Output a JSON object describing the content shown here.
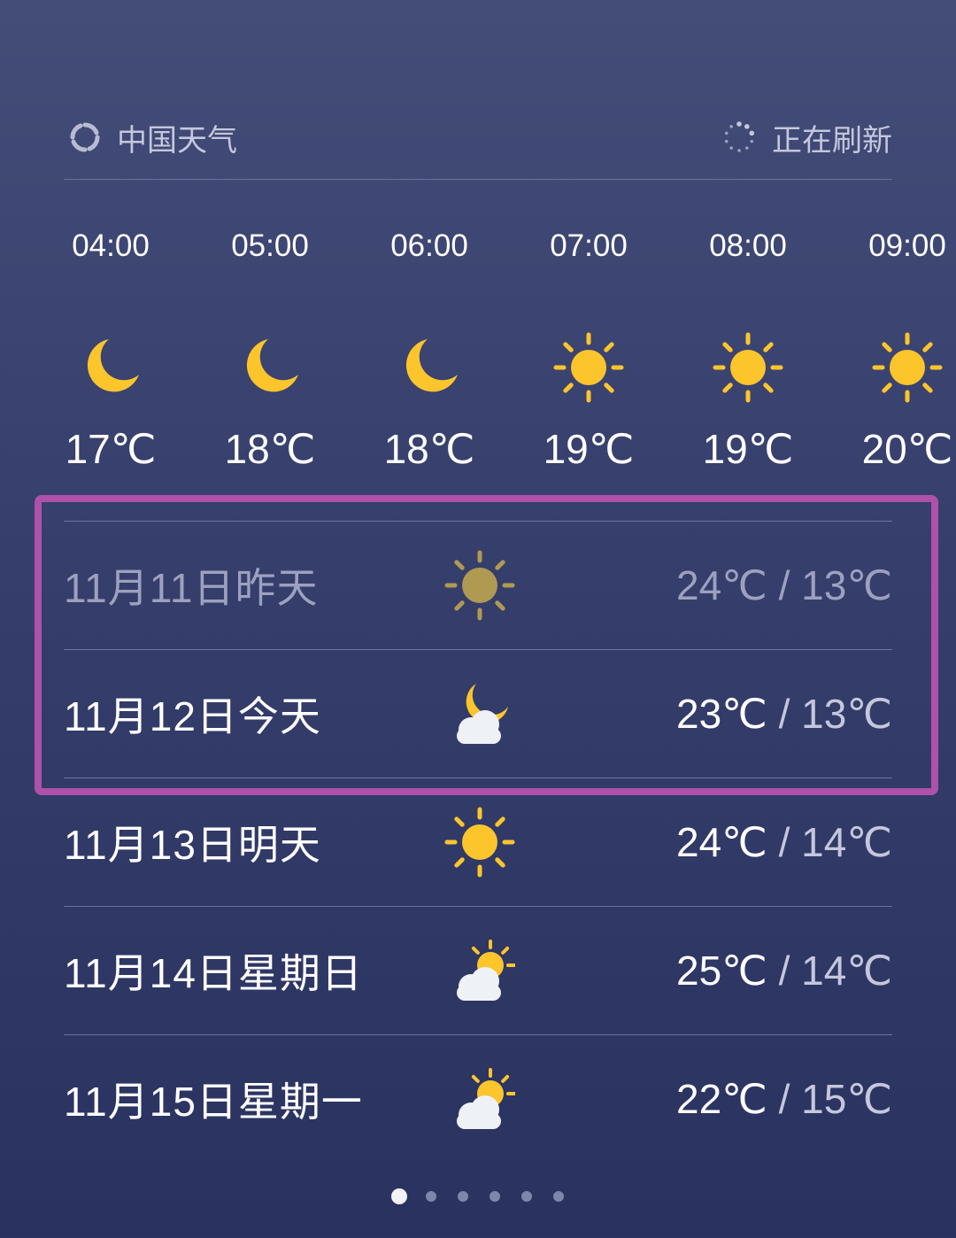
{
  "header": {
    "brand": "中国天气",
    "brand_icon": "china-weather-logo",
    "status": "正在刷新",
    "status_icon": "loading-spinner-icon"
  },
  "hourly": [
    {
      "time": "04:00",
      "icon": "moon",
      "temp": "17℃"
    },
    {
      "time": "05:00",
      "icon": "moon",
      "temp": "18℃"
    },
    {
      "time": "06:00",
      "icon": "moon",
      "temp": "18℃"
    },
    {
      "time": "07:00",
      "icon": "sun",
      "temp": "19℃"
    },
    {
      "time": "08:00",
      "icon": "sun",
      "temp": "19℃"
    },
    {
      "time": "09:00",
      "icon": "sun",
      "temp": "20℃"
    }
  ],
  "daily": [
    {
      "date": "11月11日昨天",
      "icon": "sun",
      "high": "24℃",
      "sep": " / ",
      "low": "13℃",
      "past": true
    },
    {
      "date": "11月12日今天",
      "icon": "cloud-moon",
      "high": "23℃",
      "sep": " / ",
      "low": "13℃"
    },
    {
      "date": "11月13日明天",
      "icon": "sun",
      "high": "24℃",
      "sep": " / ",
      "low": "14℃"
    },
    {
      "date": "11月14日星期日",
      "icon": "cloud-sun",
      "high": "25℃",
      "sep": " / ",
      "low": "14℃"
    },
    {
      "date": "11月15日星期一",
      "icon": "cloud-sun",
      "high": "22℃",
      "sep": " / ",
      "low": "15℃"
    }
  ],
  "pager": {
    "pages": 6,
    "current": 1
  },
  "colors": {
    "highlight": "#ad52a8",
    "sun": "#fcc52c",
    "sun_past": "#b09a52"
  }
}
